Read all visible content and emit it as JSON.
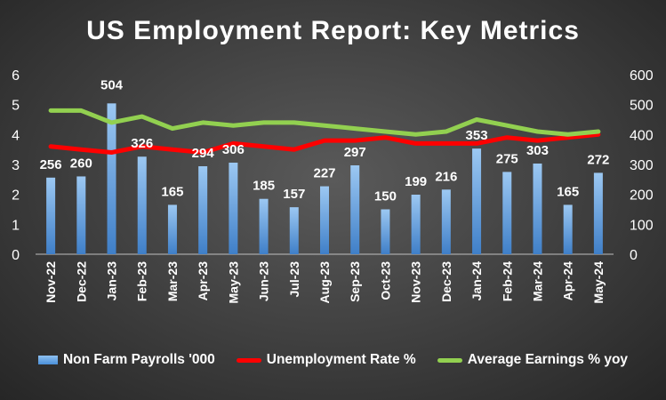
{
  "chart_data": {
    "type": "bar",
    "title": "US Employment Report: Key Metrics",
    "categories": [
      "Nov-22",
      "Dec-22",
      "Jan-23",
      "Feb-23",
      "Mar-23",
      "Apr-23",
      "May-23",
      "Jun-23",
      "Jul-23",
      "Aug-23",
      "Sep-23",
      "Oct-23",
      "Nov-23",
      "Dec-23",
      "Jan-24",
      "Feb-24",
      "Mar-24",
      "Apr-24",
      "May-24"
    ],
    "left_axis": {
      "min": 0,
      "max": 6,
      "ticks": [
        "0",
        "1",
        "2",
        "3",
        "4",
        "5",
        "6"
      ]
    },
    "right_axis": {
      "min": 0,
      "max": 600,
      "ticks": [
        "0",
        "100",
        "200",
        "300",
        "400",
        "500",
        "600"
      ]
    },
    "grid": false,
    "legend_position": "bottom",
    "series": [
      {
        "name": "Non Farm Payrolls '000",
        "kind": "bar",
        "axis": "right",
        "color": "#5b9bd5",
        "values": [
          256,
          260,
          504,
          326,
          165,
          294,
          306,
          185,
          157,
          227,
          297,
          150,
          199,
          216,
          353,
          275,
          303,
          165,
          272
        ],
        "labels": [
          "256",
          "260",
          "504",
          "326",
          "165",
          "294",
          "306",
          "185",
          "157",
          "227",
          "297",
          "150",
          "199",
          "216",
          "353",
          "275",
          "303",
          "165",
          "272"
        ]
      },
      {
        "name": "Unemployment Rate %",
        "kind": "line",
        "axis": "left",
        "color": "#ff0000",
        "values": [
          3.6,
          3.5,
          3.4,
          3.6,
          3.5,
          3.4,
          3.7,
          3.6,
          3.5,
          3.8,
          3.8,
          3.9,
          3.7,
          3.7,
          3.7,
          3.9,
          3.8,
          3.9,
          4.0
        ]
      },
      {
        "name": "Average Earnings % yoy",
        "kind": "line",
        "axis": "left",
        "color": "#92d050",
        "values": [
          4.8,
          4.8,
          4.4,
          4.6,
          4.2,
          4.4,
          4.3,
          4.4,
          4.4,
          4.3,
          4.2,
          4.1,
          4.0,
          4.1,
          4.5,
          4.3,
          4.1,
          4.0,
          4.1
        ]
      }
    ]
  }
}
